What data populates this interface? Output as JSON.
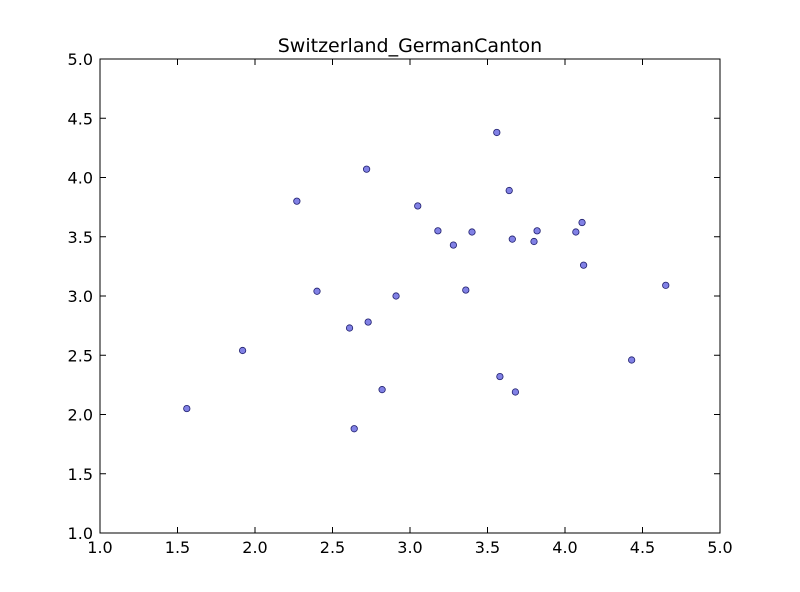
{
  "chart_data": {
    "type": "scatter",
    "title": "Switzerland_GermanCanton",
    "xlabel": "",
    "ylabel": "",
    "xlim": [
      1.0,
      5.0
    ],
    "ylim": [
      1.0,
      5.0
    ],
    "xticks": [
      "1.0",
      "1.5",
      "2.0",
      "2.5",
      "3.0",
      "3.5",
      "4.0",
      "4.5",
      "5.0"
    ],
    "yticks": [
      "1.0",
      "1.5",
      "2.0",
      "2.5",
      "3.0",
      "3.5",
      "4.0",
      "4.5",
      "5.0"
    ],
    "grid": false,
    "legend": "none",
    "marker_color": "#6b6be0",
    "marker_edge_color": "#1f1f6e",
    "series": [
      {
        "points": [
          {
            "x": 1.56,
            "y": 2.05
          },
          {
            "x": 1.92,
            "y": 2.54
          },
          {
            "x": 2.27,
            "y": 3.8
          },
          {
            "x": 2.4,
            "y": 3.04
          },
          {
            "x": 2.61,
            "y": 2.73
          },
          {
            "x": 2.64,
            "y": 1.88
          },
          {
            "x": 2.72,
            "y": 4.07
          },
          {
            "x": 2.73,
            "y": 2.78
          },
          {
            "x": 2.82,
            "y": 2.21
          },
          {
            "x": 2.91,
            "y": 3.0
          },
          {
            "x": 3.05,
            "y": 3.76
          },
          {
            "x": 3.18,
            "y": 3.55
          },
          {
            "x": 3.28,
            "y": 3.43
          },
          {
            "x": 3.36,
            "y": 3.05
          },
          {
            "x": 3.4,
            "y": 3.54
          },
          {
            "x": 3.56,
            "y": 4.38
          },
          {
            "x": 3.58,
            "y": 2.32
          },
          {
            "x": 3.64,
            "y": 3.89
          },
          {
            "x": 3.66,
            "y": 3.48
          },
          {
            "x": 3.68,
            "y": 2.19
          },
          {
            "x": 3.8,
            "y": 3.46
          },
          {
            "x": 3.82,
            "y": 3.55
          },
          {
            "x": 4.07,
            "y": 3.54
          },
          {
            "x": 4.11,
            "y": 3.62
          },
          {
            "x": 4.12,
            "y": 3.26
          },
          {
            "x": 4.43,
            "y": 2.46
          },
          {
            "x": 4.65,
            "y": 3.09
          }
        ]
      }
    ]
  }
}
